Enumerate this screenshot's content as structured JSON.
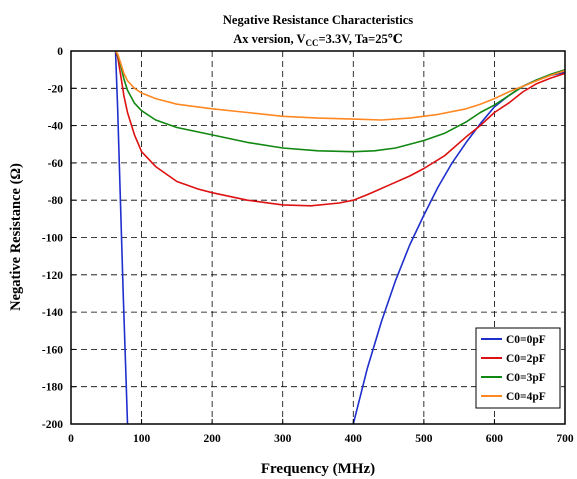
{
  "chart_data": {
    "type": "line",
    "title_line1": "Negative Resistance Characteristics",
    "title_line2_prefix": "Ax version, V",
    "title_line2_sub": "CC",
    "title_line2_suffix": "=3.3V, Ta=25℃",
    "xlabel": "Frequency (MHz)",
    "ylabel": "Negative Resistance (Ω)",
    "xlim": [
      0,
      700
    ],
    "ylim": [
      -200,
      0
    ],
    "x_ticks": [
      0,
      100,
      200,
      300,
      400,
      500,
      600,
      700
    ],
    "y_ticks": [
      0,
      -20,
      -40,
      -60,
      -80,
      -100,
      -120,
      -140,
      -160,
      -180,
      -200
    ],
    "grid": true,
    "legend_position": "bottom-right",
    "series": [
      {
        "name": "C0=0pF",
        "color": "#1f2fcc",
        "segments": [
          [
            [
              63,
              0
            ],
            [
              66,
              -30
            ],
            [
              70,
              -80
            ],
            [
              74,
              -130
            ],
            [
              78,
              -175
            ],
            [
              80,
              -200
            ]
          ],
          [
            [
              400,
              -200
            ],
            [
              420,
              -170
            ],
            [
              440,
              -145
            ],
            [
              460,
              -123
            ],
            [
              480,
              -104
            ],
            [
              500,
              -88
            ],
            [
              520,
              -73
            ],
            [
              540,
              -60
            ],
            [
              560,
              -49
            ],
            [
              580,
              -39
            ],
            [
              600,
              -30
            ],
            [
              620,
              -24
            ],
            [
              640,
              -19
            ],
            [
              660,
              -15.5
            ],
            [
              680,
              -13
            ],
            [
              700,
              -11.5
            ]
          ]
        ]
      },
      {
        "name": "C0=2pF",
        "color": "#dd1111",
        "segments": [
          [
            [
              63,
              0
            ],
            [
              66,
              -3
            ],
            [
              70,
              -12
            ],
            [
              75,
              -24
            ],
            [
              80,
              -33
            ],
            [
              90,
              -45
            ],
            [
              100,
              -54
            ],
            [
              120,
              -62
            ],
            [
              150,
              -70
            ],
            [
              180,
              -74
            ],
            [
              200,
              -76
            ],
            [
              250,
              -80
            ],
            [
              300,
              -82.5
            ],
            [
              340,
              -83
            ],
            [
              380,
              -81.5
            ],
            [
              400,
              -80
            ],
            [
              420,
              -77
            ],
            [
              450,
              -72
            ],
            [
              480,
              -67
            ],
            [
              500,
              -63
            ],
            [
              530,
              -56
            ],
            [
              560,
              -46
            ],
            [
              580,
              -40
            ],
            [
              600,
              -33
            ],
            [
              620,
              -28
            ],
            [
              640,
              -22
            ],
            [
              660,
              -17.5
            ],
            [
              680,
              -14.5
            ],
            [
              700,
              -12
            ]
          ]
        ]
      },
      {
        "name": "C0=3pF",
        "color": "#118811",
        "segments": [
          [
            [
              63,
              0
            ],
            [
              66,
              -2
            ],
            [
              70,
              -7
            ],
            [
              75,
              -15
            ],
            [
              80,
              -21
            ],
            [
              90,
              -28
            ],
            [
              100,
              -32
            ],
            [
              120,
              -37
            ],
            [
              150,
              -41
            ],
            [
              200,
              -45
            ],
            [
              250,
              -49
            ],
            [
              300,
              -52
            ],
            [
              350,
              -53.5
            ],
            [
              400,
              -54
            ],
            [
              430,
              -53.5
            ],
            [
              460,
              -52
            ],
            [
              500,
              -48
            ],
            [
              530,
              -44
            ],
            [
              560,
              -38
            ],
            [
              580,
              -33
            ],
            [
              600,
              -29
            ],
            [
              620,
              -24
            ],
            [
              640,
              -19
            ],
            [
              660,
              -15.5
            ],
            [
              680,
              -12.5
            ],
            [
              700,
              -10
            ]
          ]
        ]
      },
      {
        "name": "C0=4pF",
        "color": "#ff8822",
        "segments": [
          [
            [
              63,
              0
            ],
            [
              66,
              -1.5
            ],
            [
              70,
              -6
            ],
            [
              75,
              -12
            ],
            [
              80,
              -16
            ],
            [
              90,
              -20
            ],
            [
              100,
              -22.5
            ],
            [
              120,
              -25.5
            ],
            [
              150,
              -28.5
            ],
            [
              200,
              -31
            ],
            [
              250,
              -33
            ],
            [
              300,
              -35
            ],
            [
              350,
              -36
            ],
            [
              400,
              -36.5
            ],
            [
              440,
              -37
            ],
            [
              480,
              -36
            ],
            [
              520,
              -34
            ],
            [
              560,
              -31
            ],
            [
              580,
              -28.5
            ],
            [
              600,
              -25.5
            ],
            [
              620,
              -22
            ],
            [
              640,
              -19
            ],
            [
              660,
              -16
            ],
            [
              680,
              -13
            ],
            [
              700,
              -10.5
            ]
          ]
        ]
      }
    ]
  }
}
